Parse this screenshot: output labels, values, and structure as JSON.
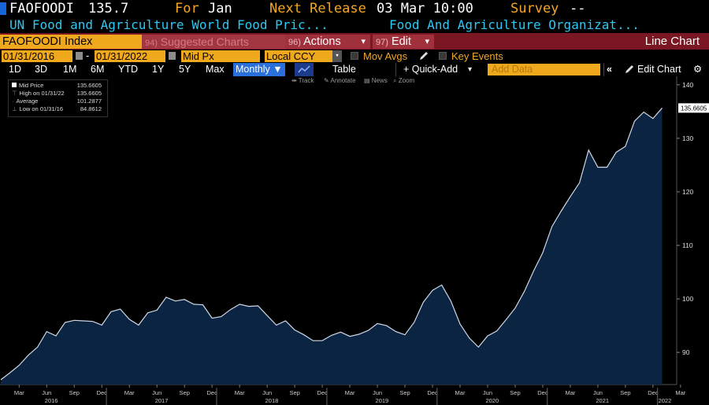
{
  "header": {
    "ticker": "FAOFOODI",
    "last_price": "135.7",
    "for_label": "For",
    "for_value": "Jan",
    "next_release_label": "Next Release",
    "next_release_value": "03 Mar 10:00",
    "survey_label": "Survey",
    "survey_value": "--",
    "description": "UN Food and Agriculture World Food Pric...",
    "source": "Food And Agriculture Organizat..."
  },
  "toolbar": {
    "ticker_field": "FAOFOODI Index",
    "suggested_num": "94)",
    "suggested_label": "Suggested Charts",
    "actions_num": "96)",
    "actions_label": "Actions",
    "edit_num": "97)",
    "edit_label": "Edit",
    "chart_type_label": "Line Chart",
    "dropdown_glyph": "▾"
  },
  "controls": {
    "start_date": "01/31/2016",
    "date_sep": "-",
    "end_date": "01/31/2022",
    "price_field": "Mid Px",
    "currency_field": "Local CCY",
    "mov_avgs_label": "Mov Avgs",
    "key_events_label": "Key Events"
  },
  "range_bar": {
    "buttons": [
      "1D",
      "3D",
      "1M",
      "6M",
      "YTD",
      "1Y",
      "5Y",
      "Max"
    ],
    "frequency": "Monthly ▼",
    "table_label": "Table",
    "quick_add_label": "+ Quick-Add",
    "quick_add_caret": "▾",
    "add_data_placeholder": "Add Data",
    "collapse_glyph": "«",
    "edit_chart_label": "Edit Chart",
    "settings_glyph": "⚙"
  },
  "chart_tools": {
    "track": "Track",
    "annotate": "Annotate",
    "news": "News",
    "zoom": "Zoom"
  },
  "legend": {
    "rows": [
      {
        "label": "Mid Price",
        "value": "135.6605"
      },
      {
        "label": "High on 01/31/22",
        "value": "135.6605"
      },
      {
        "label": "Average",
        "value": "101.2877"
      },
      {
        "label": "Low on 01/31/16",
        "value": "84.8612"
      }
    ]
  },
  "colors": {
    "line": "#cfd8e6",
    "fill": "#0b2442",
    "accent_orange": "#f5a623",
    "accent_cyan": "#2ec7f2",
    "menu_red": "#7a1722"
  },
  "chart_data": {
    "type": "area",
    "series": [
      {
        "name": "Mid Price",
        "x": [
          "01/2016",
          "02/2016",
          "03/2016",
          "04/2016",
          "05/2016",
          "06/2016",
          "07/2016",
          "08/2016",
          "09/2016",
          "10/2016",
          "11/2016",
          "12/2016",
          "01/2017",
          "02/2017",
          "03/2017",
          "04/2017",
          "05/2017",
          "06/2017",
          "07/2017",
          "08/2017",
          "09/2017",
          "10/2017",
          "11/2017",
          "12/2017",
          "01/2018",
          "02/2018",
          "03/2018",
          "04/2018",
          "05/2018",
          "06/2018",
          "07/2018",
          "08/2018",
          "09/2018",
          "10/2018",
          "11/2018",
          "12/2018",
          "01/2019",
          "02/2019",
          "03/2019",
          "04/2019",
          "05/2019",
          "06/2019",
          "07/2019",
          "08/2019",
          "09/2019",
          "10/2019",
          "11/2019",
          "12/2019",
          "01/2020",
          "02/2020",
          "03/2020",
          "04/2020",
          "05/2020",
          "06/2020",
          "07/2020",
          "08/2020",
          "09/2020",
          "10/2020",
          "11/2020",
          "12/2020",
          "01/2021",
          "02/2021",
          "03/2021",
          "04/2021",
          "05/2021",
          "06/2021",
          "07/2021",
          "08/2021",
          "09/2021",
          "10/2021",
          "11/2021",
          "12/2021",
          "01/2022"
        ],
        "values": [
          84.9,
          86.2,
          87.6,
          89.5,
          91.0,
          93.9,
          93.1,
          95.6,
          96.0,
          95.9,
          95.8,
          95.1,
          97.6,
          98.1,
          96.2,
          95.1,
          97.4,
          97.9,
          100.3,
          99.6,
          99.9,
          99.0,
          98.9,
          96.4,
          96.7,
          98.0,
          99.0,
          98.6,
          98.7,
          96.9,
          95.1,
          95.9,
          94.2,
          93.3,
          92.2,
          92.2,
          93.2,
          93.8,
          93.0,
          93.4,
          94.1,
          95.4,
          95.0,
          93.9,
          93.3,
          95.6,
          99.4,
          101.6,
          102.6,
          99.6,
          95.3,
          92.7,
          91.0,
          93.1,
          94.0,
          96.1,
          98.3,
          101.4,
          105.2,
          108.6,
          113.5,
          116.4,
          119.1,
          121.7,
          127.8,
          124.6,
          124.6,
          127.4,
          128.5,
          133.2,
          134.9,
          133.7,
          135.66
        ]
      }
    ],
    "title": "",
    "xlabel": "",
    "ylabel": "",
    "ylim": [
      84.0,
      141.0
    ],
    "yticks": [
      90,
      100,
      110,
      120,
      130,
      140
    ],
    "month_ticks": [
      "Mar",
      "Jun",
      "Sep",
      "Dec",
      "Mar",
      "Jun",
      "Sep",
      "Dec",
      "Mar",
      "Jun",
      "Sep",
      "Dec",
      "Mar",
      "Jun",
      "Sep",
      "Dec",
      "Mar",
      "Jun",
      "Sep",
      "Dec",
      "Mar",
      "Jun",
      "Sep",
      "Dec",
      "Mar"
    ],
    "year_labels": [
      "2016",
      "2017",
      "2018",
      "2019",
      "2020",
      "2021",
      "2022"
    ],
    "last_value_label": "135.6605",
    "grid": false,
    "legend_position": "top-left"
  }
}
